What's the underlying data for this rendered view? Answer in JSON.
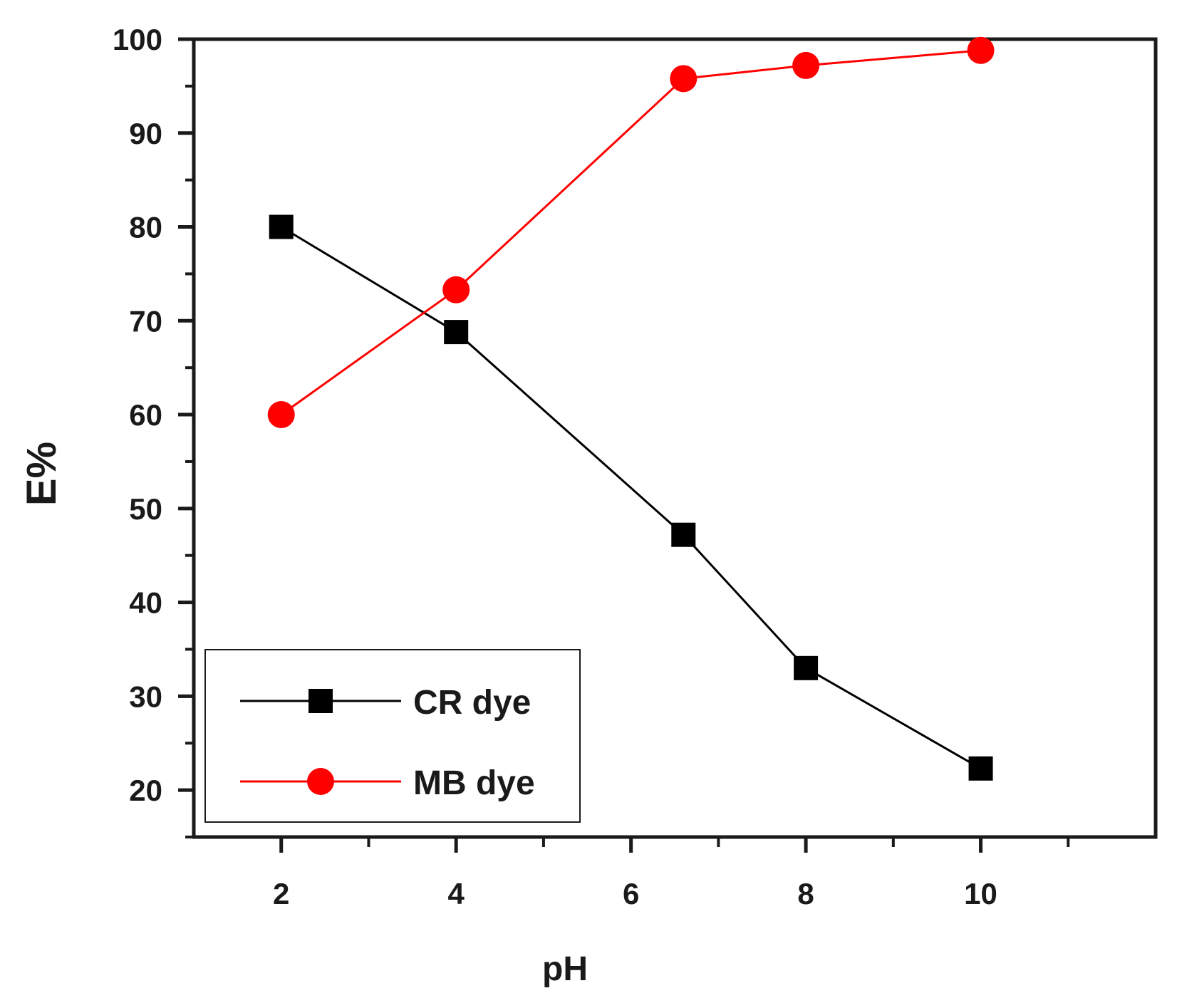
{
  "chart_data": {
    "type": "line",
    "title": "",
    "xlabel": "pH",
    "ylabel": "E%",
    "xlim": [
      1,
      12
    ],
    "ylim": [
      15,
      100
    ],
    "xticks": [
      2,
      4,
      6,
      8,
      10
    ],
    "xminor": [
      3,
      5,
      7,
      9,
      11
    ],
    "yticks": [
      20,
      30,
      40,
      50,
      60,
      70,
      80,
      90,
      100
    ],
    "yminor": [
      15,
      25,
      35,
      45,
      55,
      65,
      75,
      85,
      95
    ],
    "grid": false,
    "legend_position": "bottom-left",
    "series": [
      {
        "name": "CR dye",
        "color": "#000000",
        "marker": "square",
        "x": [
          2,
          4,
          6.6,
          8,
          10
        ],
        "values": [
          80,
          68.8,
          47.2,
          33,
          22.3
        ]
      },
      {
        "name": "MB dye",
        "color": "#ff0000",
        "marker": "circle",
        "x": [
          2,
          4,
          6.6,
          8,
          10
        ],
        "values": [
          60,
          73.3,
          95.8,
          97.2,
          98.8
        ]
      }
    ]
  }
}
